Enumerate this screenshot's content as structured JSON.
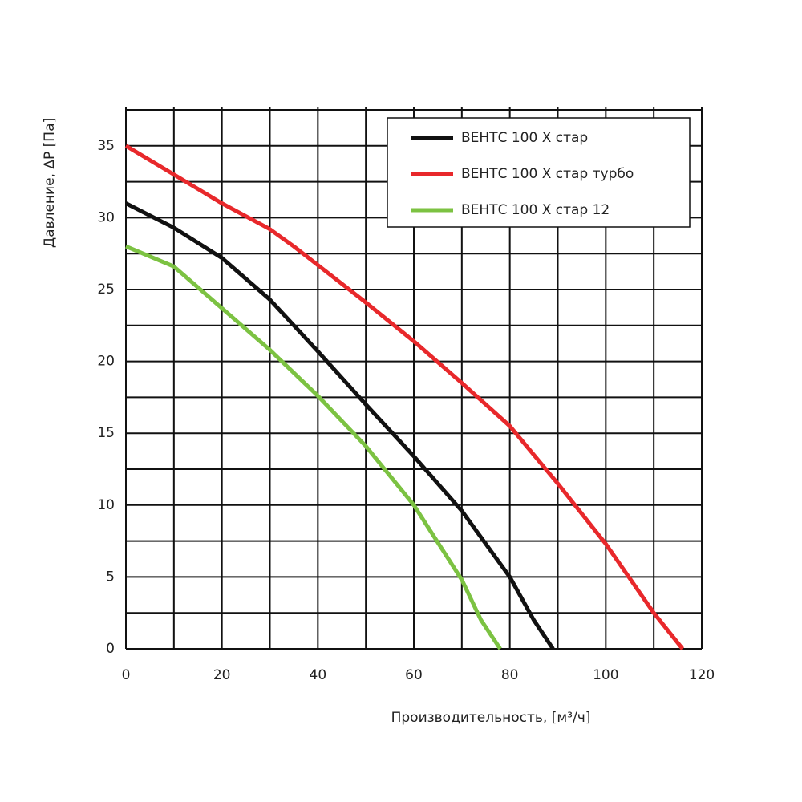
{
  "chart_data": {
    "type": "line",
    "x_label": "Производительность, [м³/ч]",
    "y_label": "Давление, ΔP [Па]",
    "xlim": [
      0,
      120
    ],
    "ylim": [
      0,
      37.5
    ],
    "xticks": [
      0,
      20,
      40,
      60,
      80,
      100,
      120
    ],
    "yticks": [
      0,
      5,
      10,
      15,
      20,
      25,
      30,
      35
    ],
    "xgrid": [
      0,
      10,
      20,
      30,
      40,
      50,
      60,
      70,
      80,
      90,
      100,
      110,
      120
    ],
    "ygrid": [
      0,
      2.5,
      5,
      7.5,
      10,
      12.5,
      15,
      17.5,
      20,
      22.5,
      25,
      27.5,
      30,
      32.5,
      35,
      37.5
    ],
    "grid": true,
    "legend": "upper right",
    "series": [
      {
        "name": "ВЕНТС 100 Х стар",
        "color": "#111111",
        "x": [
          0,
          10,
          20,
          30,
          40,
          50,
          60,
          70,
          80,
          85,
          89
        ],
        "values": [
          31,
          29.3,
          27.2,
          24.3,
          20.7,
          17,
          13.4,
          9.6,
          5,
          2,
          0
        ]
      },
      {
        "name": "ВЕНТС 100 Х стар турбо",
        "color": "#e8282b",
        "x": [
          0,
          10,
          20,
          30,
          35,
          40,
          50,
          60,
          70,
          80,
          90,
          100,
          110,
          116
        ],
        "values": [
          35,
          33,
          31,
          29.2,
          28,
          26.7,
          24.1,
          21.4,
          18.5,
          15.5,
          11.5,
          7.3,
          2.5,
          0
        ]
      },
      {
        "name": "ВЕНТС 100 Х стар 12",
        "color": "#7cc242",
        "x": [
          0,
          10,
          20,
          30,
          40,
          50,
          60,
          70,
          74,
          78
        ],
        "values": [
          28,
          26.6,
          23.7,
          20.8,
          17.6,
          14.1,
          10,
          4.8,
          2,
          0
        ]
      }
    ]
  }
}
